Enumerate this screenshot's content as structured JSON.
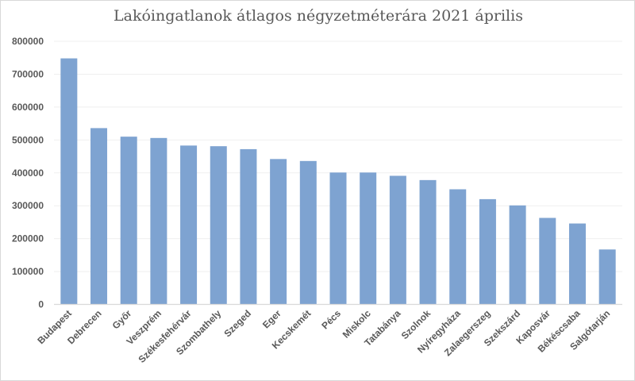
{
  "chart_data": {
    "type": "bar",
    "title": "Lakóingatlanok átlagos négyzetméterára 2021 április",
    "xlabel": "",
    "ylabel": "",
    "ylim": [
      0,
      800000
    ],
    "yticks": [
      0,
      100000,
      200000,
      300000,
      400000,
      500000,
      600000,
      700000,
      800000
    ],
    "grid": true,
    "bar_color": "#7ea3d1",
    "categories": [
      "Budapest",
      "Debrecen",
      "Győr",
      "Veszprém",
      "Székesfehérvár",
      "Szombathely",
      "Szeged",
      "Eger",
      "Kecskemét",
      "Pécs",
      "Miskolc",
      "Tatabánya",
      "Szolnok",
      "Nyíregyháza",
      "Zalaegerszeg",
      "Szekszárd",
      "Kaposvár",
      "Békéscsaba",
      "Salgótarján"
    ],
    "values": [
      748000,
      536000,
      510000,
      506000,
      483000,
      481000,
      472000,
      442000,
      436000,
      401000,
      401000,
      391000,
      378000,
      350000,
      320000,
      301000,
      263000,
      246000,
      167000
    ]
  }
}
